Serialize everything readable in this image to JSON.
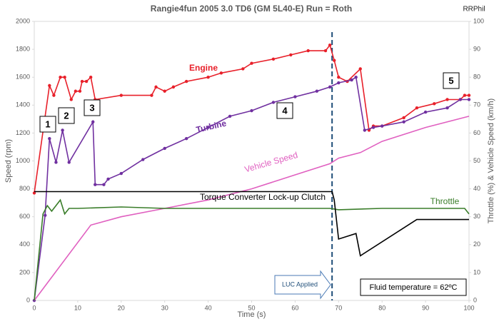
{
  "chart_data": {
    "type": "line",
    "title": "Rangie4fun   2005 3.0 TD6  (GM 5L40-E)   Run = Roth",
    "credit": "RRPhil",
    "x_label": "Time (s)",
    "y_label": "Speed (rpm)",
    "y2_label": "Throttle (%) & Vehicle Speed (km/h)",
    "xlim": [
      0,
      100
    ],
    "xticks": [
      0,
      10,
      20,
      30,
      40,
      50,
      60,
      70,
      80,
      90,
      100
    ],
    "ylim": [
      0,
      2000
    ],
    "yticks": [
      0,
      200,
      400,
      600,
      800,
      1000,
      1200,
      1400,
      1600,
      1800,
      2000
    ],
    "y2lim": [
      0,
      100
    ],
    "y2ticks": [
      0,
      10,
      20,
      30,
      40,
      50,
      60,
      70,
      80,
      90,
      100
    ],
    "grid": false,
    "series": [
      {
        "name": "Engine",
        "color": "#e8202a",
        "markers": true,
        "x": [
          0,
          3.5,
          4.5,
          6,
          7,
          8.5,
          9.5,
          10.5,
          11,
          12,
          13,
          14,
          20,
          27,
          28,
          30,
          32,
          35,
          40,
          43,
          48,
          50,
          55,
          59,
          63,
          67,
          68,
          69,
          70,
          72,
          75,
          77,
          78,
          80,
          85,
          88,
          92,
          95,
          98,
          99,
          100
        ],
        "values": [
          770,
          1540,
          1470,
          1600,
          1600,
          1440,
          1500,
          1500,
          1570,
          1570,
          1600,
          1440,
          1470,
          1470,
          1530,
          1500,
          1530,
          1570,
          1600,
          1630,
          1660,
          1700,
          1730,
          1760,
          1790,
          1790,
          1830,
          1720,
          1600,
          1570,
          1660,
          1220,
          1250,
          1250,
          1310,
          1380,
          1410,
          1440,
          1440,
          1470,
          1470
        ]
      },
      {
        "name": "Turbine",
        "color": "#7030a0",
        "markers": true,
        "x": [
          0,
          2.5,
          3.5,
          5,
          6.5,
          8,
          13.5,
          14,
          16,
          17,
          20,
          25,
          30,
          35,
          40,
          45,
          50,
          55,
          60,
          65,
          68,
          70,
          73,
          74,
          76,
          78,
          80,
          85,
          90,
          95,
          98,
          100
        ],
        "values": [
          0,
          610,
          1160,
          990,
          1220,
          990,
          1280,
          830,
          830,
          870,
          910,
          1010,
          1090,
          1160,
          1240,
          1320,
          1360,
          1420,
          1460,
          1500,
          1530,
          1560,
          1580,
          1600,
          1220,
          1240,
          1250,
          1280,
          1350,
          1380,
          1440,
          1440
        ]
      },
      {
        "name": "Vehicle Speed",
        "color": "#e060c0",
        "axis": "y2",
        "markers": false,
        "x": [
          0,
          13,
          20,
          30,
          40,
          50,
          60,
          68,
          70,
          75,
          80,
          90,
          100
        ],
        "values": [
          0,
          27,
          30,
          33,
          36,
          40,
          45,
          49,
          51,
          53,
          57,
          62,
          66
        ]
      },
      {
        "name": "Throttle",
        "color": "#3a7d2a",
        "axis": "y2",
        "markers": false,
        "x": [
          0,
          2,
          3,
          4,
          6,
          7,
          8,
          10,
          20,
          30,
          40,
          50,
          60,
          68,
          70,
          80,
          90,
          99,
          100
        ],
        "values": [
          0,
          31,
          34,
          32,
          36,
          31,
          33,
          33,
          33.5,
          33,
          33,
          33,
          33,
          33,
          32.5,
          33,
          33,
          33,
          31
        ]
      },
      {
        "name": "Torque Converter Lock-up Clutch",
        "color": "#000000",
        "axis": "y2",
        "markers": false,
        "x": [
          0,
          68.5,
          69,
          70,
          74,
          75,
          88,
          100
        ],
        "values": [
          39,
          39,
          36,
          22,
          24,
          16,
          29,
          29
        ]
      }
    ],
    "event": {
      "x": 68.5,
      "label": "LUC Applied"
    },
    "annotations": [
      "1",
      "2",
      "3",
      "4",
      "5"
    ],
    "note": "Fluid temperature = 62ºC"
  }
}
